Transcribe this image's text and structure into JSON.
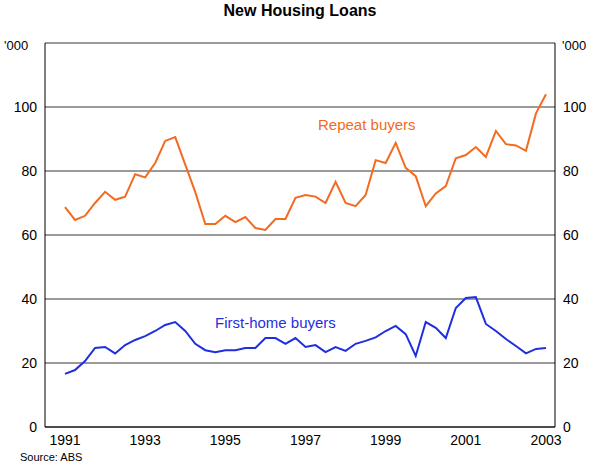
{
  "chart_data": {
    "type": "line",
    "title": "New Housing Loans",
    "ylabel": "'000",
    "y2label": "'000",
    "source": "Source: ABS",
    "categories": [
      "1991",
      null,
      null,
      null,
      null,
      null,
      null,
      null,
      "1993",
      null,
      null,
      null,
      null,
      null,
      null,
      null,
      "1995",
      null,
      null,
      null,
      null,
      null,
      null,
      null,
      "1997",
      null,
      null,
      null,
      null,
      null,
      null,
      null,
      "1999",
      null,
      null,
      null,
      null,
      null,
      null,
      null,
      "2001",
      null,
      null,
      null,
      null,
      null,
      null,
      null,
      "2003"
    ],
    "series": [
      {
        "name": "Repeat buyers",
        "color": "#f26b21",
        "values": [
          68.7,
          64.7,
          66,
          70,
          73.5,
          71,
          72,
          79,
          78,
          82.5,
          89.4,
          90.6,
          82,
          73.4,
          63.4,
          63.4,
          66,
          64,
          65.6,
          62.2,
          61.6,
          65,
          65,
          71.6,
          72.5,
          72,
          70,
          76.6,
          70,
          69,
          72.5,
          83.4,
          82.5,
          88.8,
          81,
          78.4,
          69,
          73,
          75.3,
          84,
          85,
          87.5,
          84.4,
          92.5,
          88.4,
          88,
          86.3,
          98,
          104
        ]
      },
      {
        "name": "First-home buyers",
        "color": "#1f2fe0",
        "values": [
          16.6,
          17.8,
          20.6,
          24.7,
          25,
          23,
          25.6,
          27.2,
          28.4,
          30,
          31.9,
          32.8,
          30,
          26,
          24,
          23.4,
          24,
          24,
          24.7,
          24.7,
          27.8,
          27.8,
          26,
          27.8,
          25,
          25.6,
          23.4,
          25,
          23.8,
          26,
          26.9,
          28,
          30,
          31.6,
          29,
          22.2,
          32.8,
          31,
          27.8,
          37.2,
          40.3,
          40.6,
          32.2,
          30,
          27.5,
          25.3,
          23,
          24.4,
          24.7
        ]
      }
    ],
    "ylim": [
      0,
      120
    ],
    "yticks": [
      0,
      20,
      40,
      60,
      80,
      100
    ],
    "y2lim": [
      0,
      120
    ],
    "y2ticks": [
      0,
      20,
      40,
      60,
      80,
      100
    ],
    "grid": true,
    "legend": false
  }
}
